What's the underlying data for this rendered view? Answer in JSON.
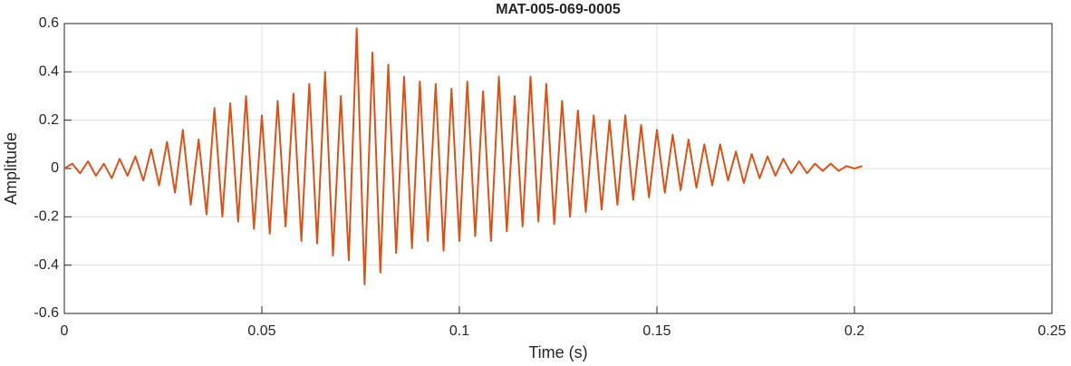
{
  "chart_data": {
    "type": "line",
    "title": "MAT-005-069-0005",
    "xlabel": "Time (s)",
    "ylabel": "Amplitude",
    "x": [
      0,
      0.002,
      0.004,
      0.006,
      0.008,
      0.01,
      0.012,
      0.014,
      0.016,
      0.018,
      0.02,
      0.022,
      0.024,
      0.026,
      0.028,
      0.03,
      0.032,
      0.034,
      0.036,
      0.038,
      0.04,
      0.042,
      0.044,
      0.046,
      0.048,
      0.05,
      0.052,
      0.054,
      0.056,
      0.058,
      0.06,
      0.062,
      0.064,
      0.066,
      0.068,
      0.07,
      0.072,
      0.074,
      0.076,
      0.078,
      0.08,
      0.082,
      0.084,
      0.086,
      0.088,
      0.09,
      0.092,
      0.094,
      0.096,
      0.098,
      0.1,
      0.102,
      0.104,
      0.106,
      0.108,
      0.11,
      0.112,
      0.114,
      0.116,
      0.118,
      0.12,
      0.122,
      0.124,
      0.126,
      0.128,
      0.13,
      0.132,
      0.134,
      0.136,
      0.138,
      0.14,
      0.142,
      0.144,
      0.146,
      0.148,
      0.15,
      0.152,
      0.154,
      0.156,
      0.158,
      0.16,
      0.162,
      0.164,
      0.166,
      0.168,
      0.17,
      0.172,
      0.174,
      0.176,
      0.178,
      0.18,
      0.182,
      0.184,
      0.186,
      0.188,
      0.19,
      0.192,
      0.194,
      0.196,
      0.198,
      0.2,
      0.202
    ],
    "series": [
      {
        "name": "Amplitude",
        "color": "#d95319",
        "values": [
          0,
          0.02,
          -0.02,
          0.03,
          -0.03,
          0.02,
          -0.04,
          0.04,
          -0.03,
          0.05,
          -0.05,
          0.08,
          -0.07,
          0.11,
          -0.1,
          0.16,
          -0.15,
          0.12,
          -0.19,
          0.25,
          -0.2,
          0.27,
          -0.22,
          0.3,
          -0.25,
          0.22,
          -0.27,
          0.28,
          -0.24,
          0.31,
          -0.3,
          0.35,
          -0.31,
          0.4,
          -0.36,
          0.3,
          -0.38,
          0.58,
          -0.48,
          0.48,
          -0.43,
          0.43,
          -0.35,
          0.38,
          -0.33,
          0.36,
          -0.3,
          0.35,
          -0.34,
          0.33,
          -0.3,
          0.36,
          -0.28,
          0.32,
          -0.3,
          0.38,
          -0.26,
          0.3,
          -0.24,
          0.38,
          -0.22,
          0.35,
          -0.23,
          0.28,
          -0.2,
          0.24,
          -0.18,
          0.22,
          -0.17,
          0.2,
          -0.15,
          0.22,
          -0.13,
          0.18,
          -0.12,
          0.16,
          -0.1,
          0.14,
          -0.09,
          0.12,
          -0.08,
          0.1,
          -0.07,
          0.1,
          -0.05,
          0.07,
          -0.06,
          0.06,
          -0.04,
          0.05,
          -0.03,
          0.04,
          -0.02,
          0.03,
          -0.02,
          0.02,
          -0.01,
          0.02,
          -0.01,
          0.01,
          0,
          0.01
        ]
      }
    ],
    "xlim": [
      0,
      0.25
    ],
    "xticks": [
      0,
      0.05,
      0.1,
      0.15,
      0.2,
      0.25
    ],
    "ylim": [
      -0.6,
      0.6
    ],
    "yticks": [
      -0.6,
      -0.4,
      -0.2,
      0,
      0.2,
      0.4,
      0.6
    ],
    "grid": true
  }
}
